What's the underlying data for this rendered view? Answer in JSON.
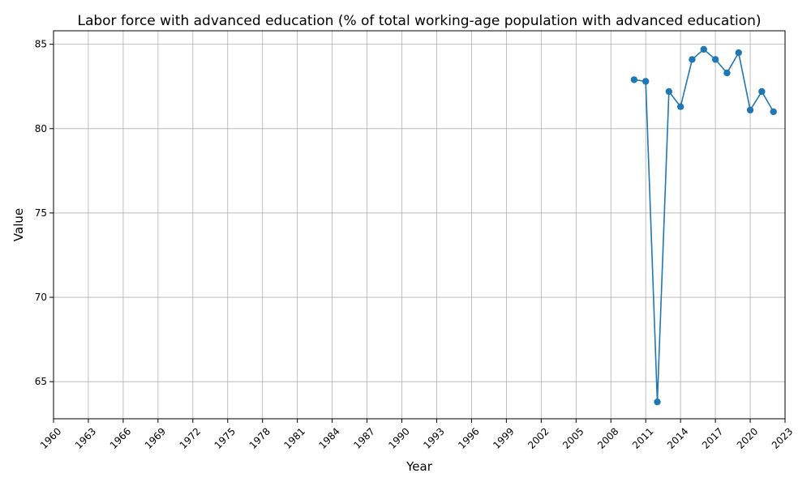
{
  "chart_data": {
    "type": "line",
    "title": "Labor force with advanced education (% of total working-age population with advanced education)",
    "xlabel": "Year",
    "ylabel": "Value",
    "xlim": [
      1960,
      2023
    ],
    "ylim": [
      62.8,
      85.8
    ],
    "x_ticks": [
      1960,
      1963,
      1966,
      1969,
      1972,
      1975,
      1978,
      1981,
      1984,
      1987,
      1990,
      1993,
      1996,
      1999,
      2002,
      2005,
      2008,
      2011,
      2014,
      2017,
      2020,
      2023
    ],
    "y_ticks": [
      65,
      70,
      75,
      80,
      85
    ],
    "grid": true,
    "series": [
      {
        "color": "#1f77b4",
        "marker": "circle",
        "x": [
          2010,
          2011,
          2012,
          2013,
          2014,
          2015,
          2016,
          2017,
          2018,
          2019,
          2020,
          2021,
          2022
        ],
        "y": [
          82.9,
          82.8,
          63.8,
          82.2,
          81.3,
          84.1,
          84.7,
          84.1,
          83.3,
          84.5,
          81.1,
          82.2,
          81.0
        ]
      }
    ]
  }
}
